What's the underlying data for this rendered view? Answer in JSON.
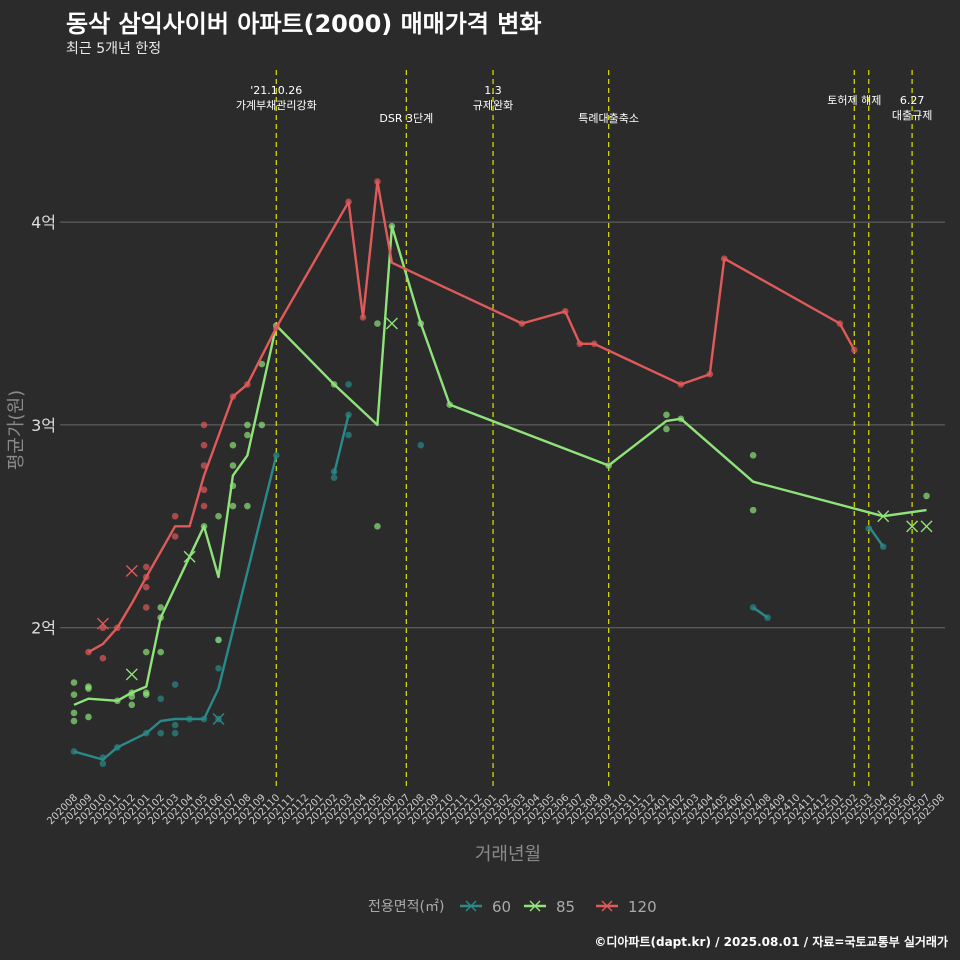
{
  "title": "동삭 삼익사이버 아파트(2000) 매매가격 변화",
  "subtitle": "최근 5개년 한정",
  "caption": "©디아파트(dapt.kr) / 2025.08.01 / 자료=국토교통부 실거래가",
  "chart_data": {
    "type": "line",
    "xlabel": "거래년월",
    "ylabel": "평균가(원)",
    "x_ticks": [
      "202008",
      "202009",
      "202010",
      "202011",
      "202012",
      "202101",
      "202102",
      "202103",
      "202104",
      "202105",
      "202106",
      "202107",
      "202108",
      "202109",
      "202110",
      "202111",
      "202112",
      "202201",
      "202202",
      "202203",
      "202204",
      "202205",
      "202206",
      "202207",
      "202208",
      "202209",
      "202210",
      "202211",
      "202212",
      "202301",
      "202302",
      "202303",
      "202304",
      "202305",
      "202306",
      "202307",
      "202308",
      "202309",
      "202310",
      "202311",
      "202312",
      "202401",
      "202402",
      "202403",
      "202404",
      "202405",
      "202406",
      "202407",
      "202408",
      "202409",
      "202410",
      "202411",
      "202412",
      "202501",
      "202502",
      "202503",
      "202504",
      "202505",
      "202506",
      "202507",
      "202508"
    ],
    "y_ticks": [
      {
        "value": 2,
        "label": "2억"
      },
      {
        "value": 3,
        "label": "3억"
      },
      {
        "value": 4,
        "label": "4억"
      }
    ],
    "ylim": [
      1.2,
      4.75
    ],
    "grid": true,
    "legend": {
      "title": "전용면적(㎡)",
      "position": "bottom",
      "entries": [
        {
          "label": "60",
          "color": "#2a8a8a"
        },
        {
          "label": "85",
          "color": "#8fe37a"
        },
        {
          "label": "120",
          "color": "#e05a5a"
        }
      ]
    },
    "events": [
      {
        "x": "202110",
        "label_lines": [
          "'21.10.26",
          "가계부채관리강화"
        ],
        "row": 1
      },
      {
        "x": "202207",
        "label_lines": [
          "DSR 3단계"
        ],
        "row": 3
      },
      {
        "x": "202301",
        "label_lines": [
          "1.3",
          "규제완화"
        ],
        "row": 1
      },
      {
        "x": "202309",
        "label_lines": [
          "특례대출축소"
        ],
        "row": 3
      },
      {
        "x": "202502",
        "label_lines": [
          "토허제 해제"
        ],
        "row": 2
      },
      {
        "x": "202503",
        "label_lines": [],
        "row": 2
      },
      {
        "x": "202506",
        "label_lines": [
          "6.27",
          "대출규제"
        ],
        "row": 2
      }
    ],
    "series": [
      {
        "name": "60",
        "color": "#2a8a8a",
        "segments": [
          [
            [
              "202008",
              1.39
            ],
            [
              "202010",
              1.35
            ],
            [
              "202011",
              1.41
            ],
            [
              "202101",
              1.48
            ],
            [
              "202102",
              1.54
            ],
            [
              "202103",
              1.55
            ],
            [
              "202104",
              1.55
            ],
            [
              "202105",
              1.55
            ],
            [
              "202106",
              1.7
            ],
            [
              "202110",
              2.85
            ]
          ],
          [
            [
              "202202",
              2.76
            ],
            [
              "202203",
              3.05
            ]
          ],
          [
            [
              "202407",
              2.1
            ],
            [
              "202408",
              2.05
            ]
          ],
          [
            [
              "202503",
              2.5
            ],
            [
              "202504",
              2.4
            ]
          ]
        ],
        "points": [
          [
            "202008",
            1.39
          ],
          [
            "202010",
            1.36
          ],
          [
            "202010",
            1.33
          ],
          [
            "202011",
            1.41
          ],
          [
            "202101",
            1.48
          ],
          [
            "202102",
            1.48
          ],
          [
            "202102",
            1.65
          ],
          [
            "202103",
            1.48
          ],
          [
            "202103",
            1.52
          ],
          [
            "202103",
            1.72
          ],
          [
            "202104",
            1.55
          ],
          [
            "202105",
            1.55
          ],
          [
            "202106",
            1.55
          ],
          [
            "202106",
            1.8
          ],
          [
            "202106",
            1.94
          ],
          [
            "202110",
            2.85
          ],
          [
            "202202",
            2.74
          ],
          [
            "202202",
            2.77
          ],
          [
            "202203",
            2.95
          ],
          [
            "202203",
            3.05
          ],
          [
            "202203",
            3.2
          ],
          [
            "202208",
            2.9
          ],
          [
            "202407",
            2.1
          ],
          [
            "202408",
            2.05
          ],
          [
            "202503",
            2.49
          ],
          [
            "202504",
            2.4
          ]
        ],
        "outliers": [
          [
            "202106",
            1.55
          ]
        ]
      },
      {
        "name": "85",
        "color": "#8fe37a",
        "segments": [
          [
            [
              "202008",
              1.62
            ],
            [
              "202009",
              1.65
            ],
            [
              "202011",
              1.64
            ],
            [
              "202012",
              1.68
            ],
            [
              "202101",
              1.71
            ],
            [
              "202102",
              2.05
            ],
            [
              "202105",
              2.5
            ],
            [
              "202106",
              2.25
            ],
            [
              "202107",
              2.75
            ],
            [
              "202108",
              2.85
            ],
            [
              "202110",
              3.49
            ],
            [
              "202202",
              3.2
            ],
            [
              "202205",
              3.0
            ],
            [
              "202206",
              3.98
            ],
            [
              "202208",
              3.5
            ],
            [
              "202210",
              3.1
            ],
            [
              "202309",
              2.8
            ],
            [
              "202401",
              3.02
            ],
            [
              "202402",
              3.03
            ],
            [
              "202407",
              2.72
            ],
            [
              "202504",
              2.55
            ],
            [
              "202507",
              2.58
            ]
          ]
        ],
        "points": [
          [
            "202008",
            1.58
          ],
          [
            "202008",
            1.54
          ],
          [
            "202008",
            1.67
          ],
          [
            "202008",
            1.73
          ],
          [
            "202009",
            1.56
          ],
          [
            "202009",
            1.7
          ],
          [
            "202009",
            1.71
          ],
          [
            "202011",
            1.64
          ],
          [
            "202012",
            1.62
          ],
          [
            "202012",
            1.66
          ],
          [
            "202012",
            1.68
          ],
          [
            "202101",
            1.67
          ],
          [
            "202101",
            1.68
          ],
          [
            "202101",
            1.88
          ],
          [
            "202102",
            1.88
          ],
          [
            "202102",
            2.05
          ],
          [
            "202102",
            2.1
          ],
          [
            "202105",
            2.5
          ],
          [
            "202106",
            1.94
          ],
          [
            "202106",
            2.55
          ],
          [
            "202107",
            2.6
          ],
          [
            "202107",
            2.7
          ],
          [
            "202107",
            2.8
          ],
          [
            "202107",
            2.9
          ],
          [
            "202108",
            2.6
          ],
          [
            "202108",
            2.95
          ],
          [
            "202108",
            3.0
          ],
          [
            "202109",
            3.0
          ],
          [
            "202109",
            3.3
          ],
          [
            "202110",
            3.49
          ],
          [
            "202202",
            3.2
          ],
          [
            "202205",
            3.5
          ],
          [
            "202205",
            2.5
          ],
          [
            "202206",
            3.98
          ],
          [
            "202208",
            3.5
          ],
          [
            "202210",
            3.1
          ],
          [
            "202309",
            2.8
          ],
          [
            "202401",
            2.98
          ],
          [
            "202401",
            3.05
          ],
          [
            "202402",
            3.03
          ],
          [
            "202407",
            2.58
          ],
          [
            "202407",
            2.85
          ],
          [
            "202507",
            2.65
          ]
        ],
        "outliers": [
          [
            "202012",
            1.77
          ],
          [
            "202104",
            2.35
          ],
          [
            "202206",
            3.5
          ],
          [
            "202504",
            2.55
          ],
          [
            "202506",
            2.5
          ],
          [
            "202507",
            2.5
          ]
        ]
      },
      {
        "name": "120",
        "color": "#e05a5a",
        "segments": [
          [
            [
              "202009",
              1.88
            ],
            [
              "202010",
              1.92
            ],
            [
              "202011",
              2.0
            ],
            [
              "202012",
              2.12
            ],
            [
              "202101",
              2.25
            ],
            [
              "202103",
              2.5
            ],
            [
              "202104",
              2.5
            ],
            [
              "202105",
              2.75
            ],
            [
              "202107",
              3.14
            ],
            [
              "202108",
              3.2
            ],
            [
              "202110",
              3.48
            ],
            [
              "202203",
              4.1
            ],
            [
              "202204",
              3.53
            ],
            [
              "202205",
              4.2
            ],
            [
              "202206",
              3.8
            ],
            [
              "202303",
              3.5
            ],
            [
              "202306",
              3.56
            ],
            [
              "202307",
              3.4
            ],
            [
              "202308",
              3.4
            ],
            [
              "202402",
              3.2
            ],
            [
              "202404",
              3.25
            ],
            [
              "202405",
              3.82
            ],
            [
              "202501",
              3.5
            ],
            [
              "202502",
              3.37
            ]
          ]
        ],
        "points": [
          [
            "202009",
            1.88
          ],
          [
            "202010",
            1.85
          ],
          [
            "202010",
            2.0
          ],
          [
            "202011",
            2.0
          ],
          [
            "202101",
            2.2
          ],
          [
            "202101",
            2.1
          ],
          [
            "202101",
            2.25
          ],
          [
            "202101",
            2.3
          ],
          [
            "202103",
            2.45
          ],
          [
            "202103",
            2.55
          ],
          [
            "202105",
            2.6
          ],
          [
            "202105",
            2.68
          ],
          [
            "202105",
            2.8
          ],
          [
            "202105",
            2.9
          ],
          [
            "202105",
            3.0
          ],
          [
            "202107",
            3.14
          ],
          [
            "202108",
            3.2
          ],
          [
            "202110",
            3.48
          ],
          [
            "202203",
            4.1
          ],
          [
            "202204",
            3.53
          ],
          [
            "202205",
            4.2
          ],
          [
            "202303",
            3.5
          ],
          [
            "202306",
            3.56
          ],
          [
            "202307",
            3.4
          ],
          [
            "202308",
            3.4
          ],
          [
            "202402",
            3.2
          ],
          [
            "202404",
            3.25
          ],
          [
            "202405",
            3.82
          ],
          [
            "202501",
            3.5
          ],
          [
            "202502",
            3.37
          ]
        ],
        "outliers": [
          [
            "202010",
            2.02
          ],
          [
            "202012",
            2.28
          ]
        ]
      }
    ]
  }
}
